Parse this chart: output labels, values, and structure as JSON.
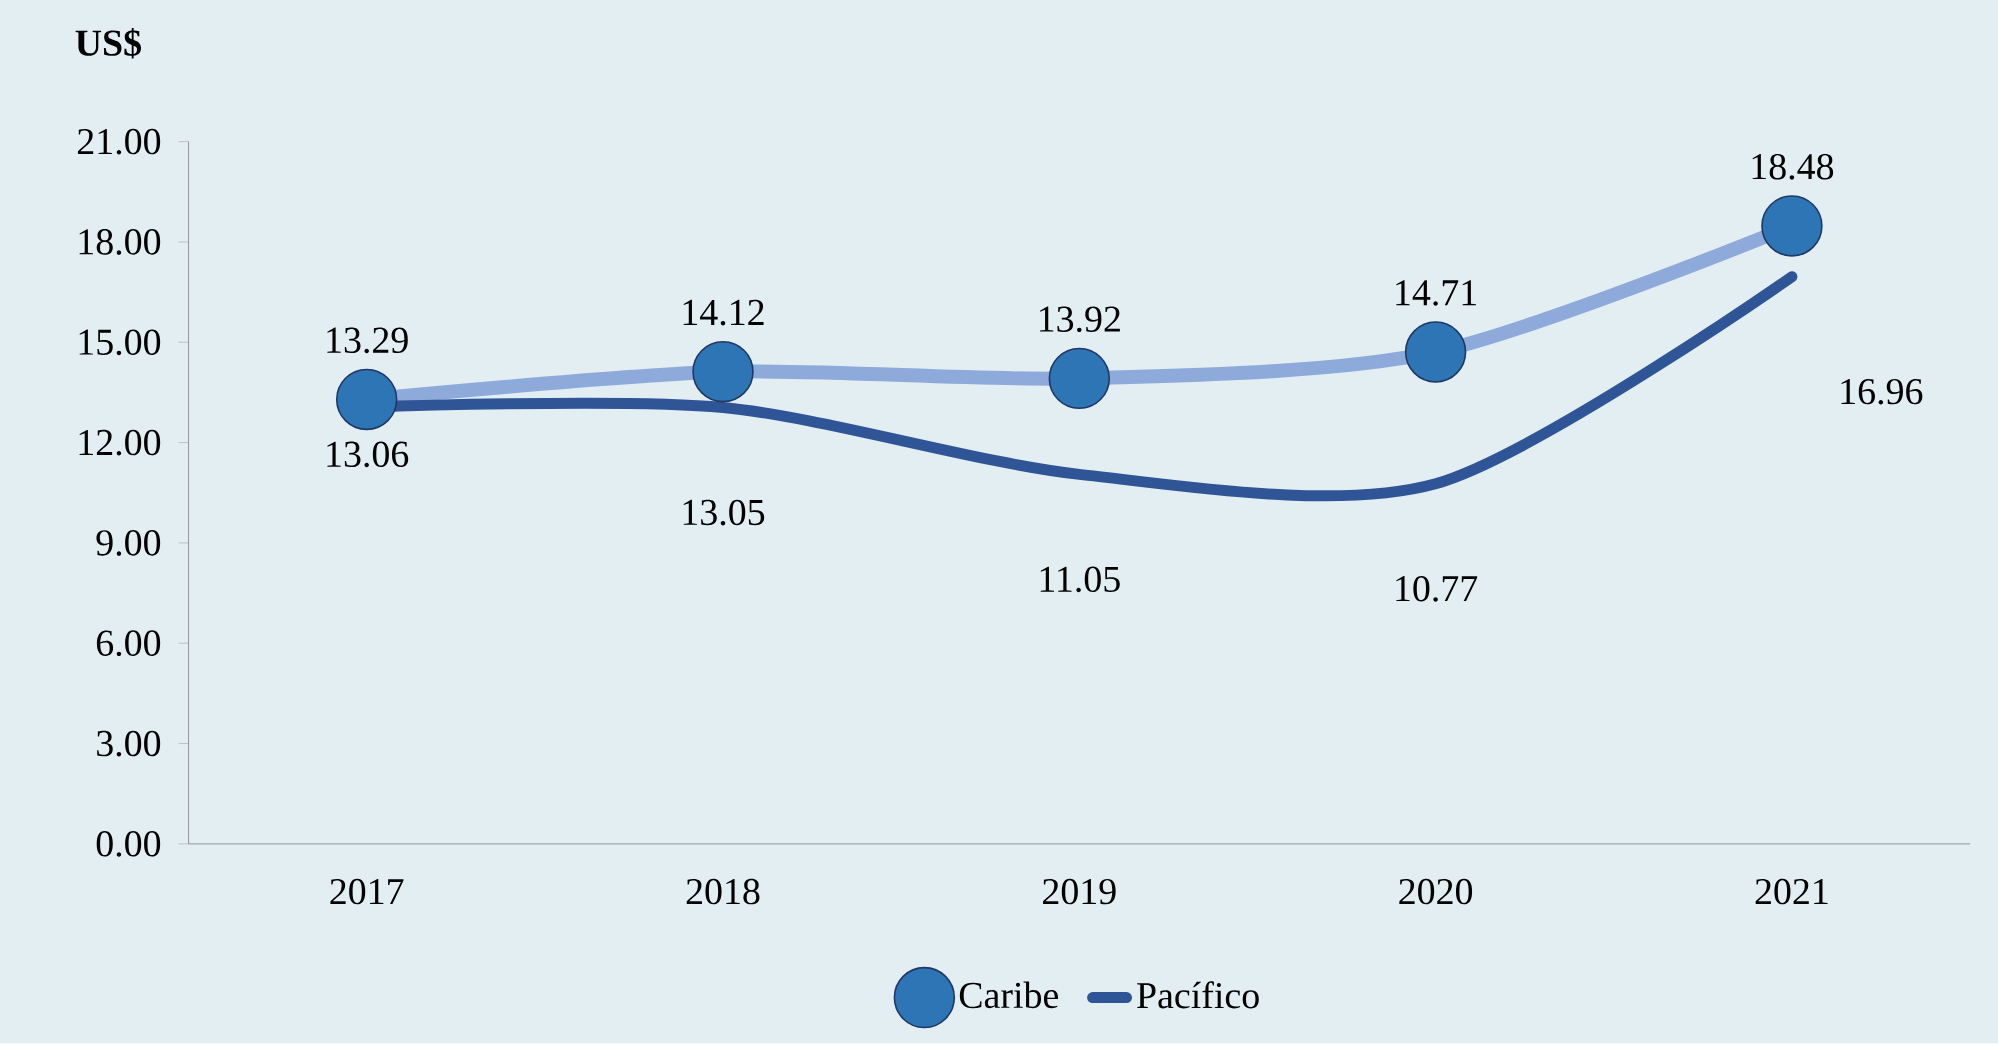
{
  "chart_data": {
    "type": "line",
    "ylabel": "US$",
    "categories": [
      "2017",
      "2018",
      "2019",
      "2020",
      "2021"
    ],
    "series": [
      {
        "name": "Caribe",
        "color": "#8eaadb",
        "marker": "circle",
        "values": [
          13.29,
          14.12,
          13.92,
          14.71,
          18.48
        ]
      },
      {
        "name": "Pacífico",
        "color": "#2f5597",
        "marker": "none",
        "values": [
          13.06,
          13.05,
          11.05,
          10.77,
          16.96
        ]
      }
    ],
    "ylim": [
      0,
      21
    ],
    "yticks": [
      {
        "value": 0,
        "label": "0.00"
      },
      {
        "value": 3,
        "label": "3.00"
      },
      {
        "value": 6,
        "label": "6.00"
      },
      {
        "value": 9,
        "label": "9.00"
      },
      {
        "value": 12,
        "label": "12.00"
      },
      {
        "value": 15,
        "label": "15.00"
      },
      {
        "value": 18,
        "label": "18.00"
      },
      {
        "value": 21,
        "label": "21.00"
      }
    ],
    "data_labels": true,
    "legend": "bottom",
    "grid": false
  }
}
